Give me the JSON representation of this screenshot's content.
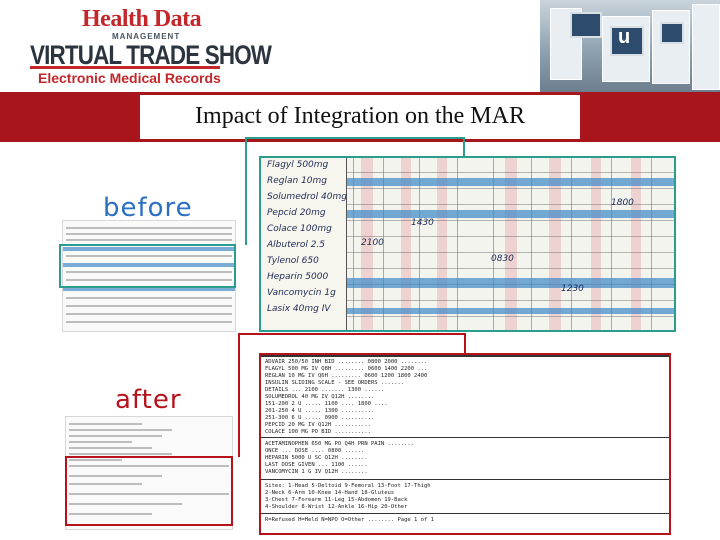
{
  "header": {
    "brand_top": "Health Data",
    "brand_sub": "MANAGEMENT",
    "brand_main": "VIRTUAL TRADE SHOW",
    "brand_emr": "Electronic Medical Records"
  },
  "slide": {
    "title": "Impact of Integration on the MAR",
    "label_before": "before",
    "label_after": "after"
  },
  "colors": {
    "banner_red": "#a8151c",
    "before_blue": "#2b6fc4",
    "after_red": "#b5121b",
    "before_frame": "#2a9d8f"
  }
}
